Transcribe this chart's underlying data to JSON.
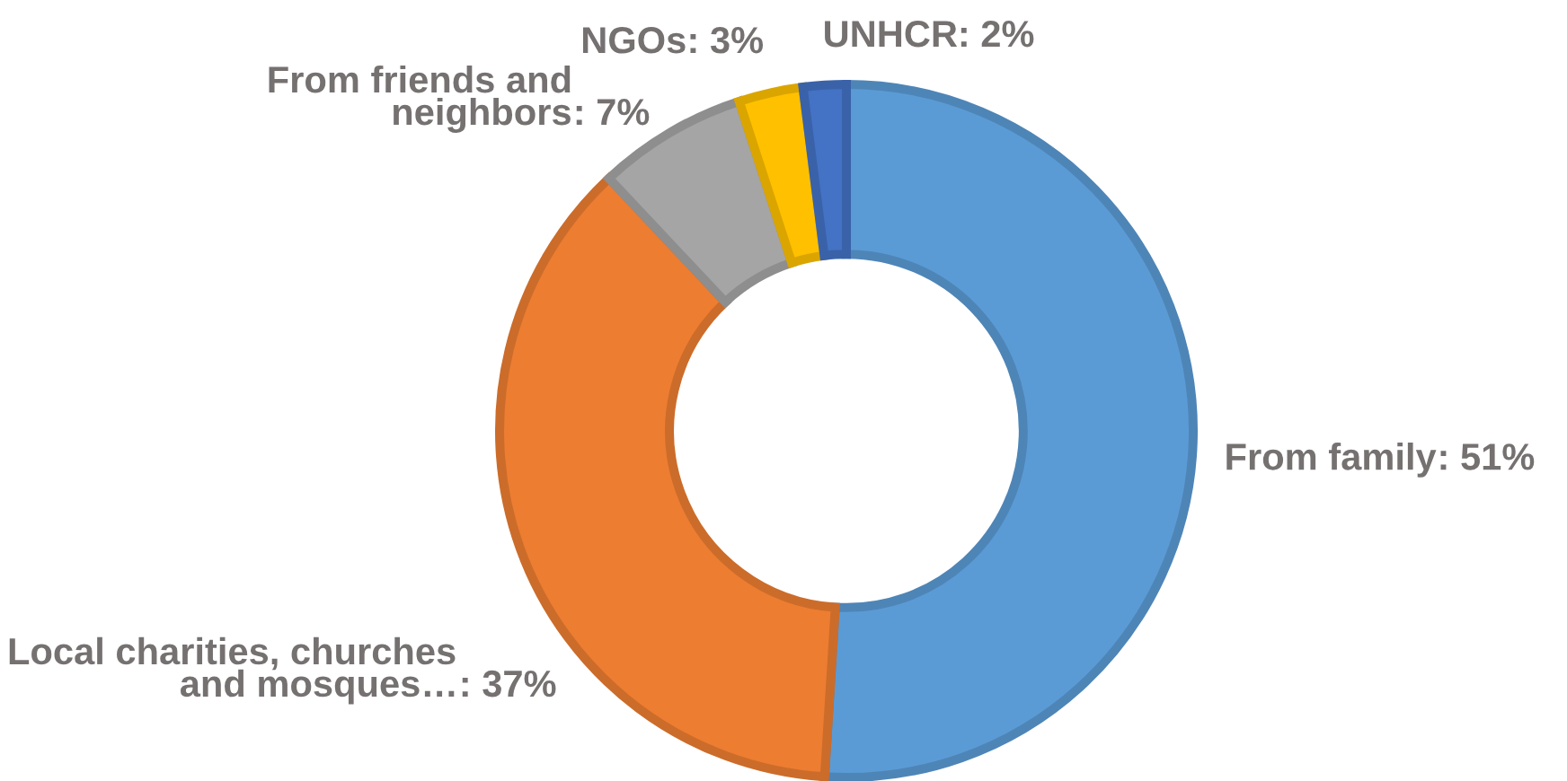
{
  "chart_data": {
    "type": "donut",
    "categories": [
      "From family",
      "Local charities, churches and mosques…",
      "From friends and neighbors",
      "NGOs",
      "UNHCR"
    ],
    "values": [
      51,
      37,
      7,
      3,
      2
    ],
    "colors": [
      "#5b9bd5",
      "#ed7d31",
      "#a5a5a5",
      "#ffc000",
      "#4472c4"
    ],
    "value_labels": [
      ": 51%",
      ": 37%",
      ": 7%",
      ": 3%",
      ": 2%"
    ]
  }
}
